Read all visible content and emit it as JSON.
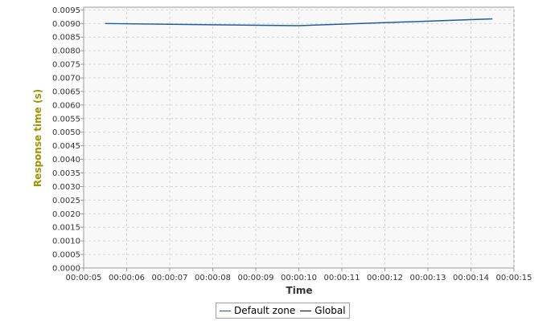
{
  "chart_data": {
    "type": "line",
    "title": "",
    "xlabel": "Time",
    "ylabel": "Response time (s)",
    "x_ticks": [
      "00:00:05",
      "00:00:06",
      "00:00:07",
      "00:00:08",
      "00:00:09",
      "00:00:10",
      "00:00:11",
      "00:00:12",
      "00:00:13",
      "00:00:14",
      "00:00:15"
    ],
    "y_ticks": [
      "0.0000",
      "0.0005",
      "0.0010",
      "0.0015",
      "0.0020",
      "0.0025",
      "0.0030",
      "0.0035",
      "0.0040",
      "0.0045",
      "0.0050",
      "0.0055",
      "0.0060",
      "0.0065",
      "0.0070",
      "0.0075",
      "0.0080",
      "0.0085",
      "0.0090",
      "0.0095"
    ],
    "xlim": [
      "00:00:05",
      "00:00:15"
    ],
    "ylim": [
      0,
      0.0096
    ],
    "grid": true,
    "legend_position": "bottom-center",
    "series": [
      {
        "name": "Default zone",
        "color": "#1f5d9e",
        "x": [
          "00:00:05.5",
          "00:00:10.0",
          "00:00:14.5"
        ],
        "y": [
          0.009,
          0.00892,
          0.00917
        ]
      },
      {
        "name": "Global",
        "color": "#000000",
        "x": [],
        "y": []
      }
    ],
    "colors": {
      "plot_background": "#f8f8f8",
      "grid": "#d6d6d6",
      "axis_title": "#9b9600",
      "axis": "#9a9a9a"
    }
  }
}
